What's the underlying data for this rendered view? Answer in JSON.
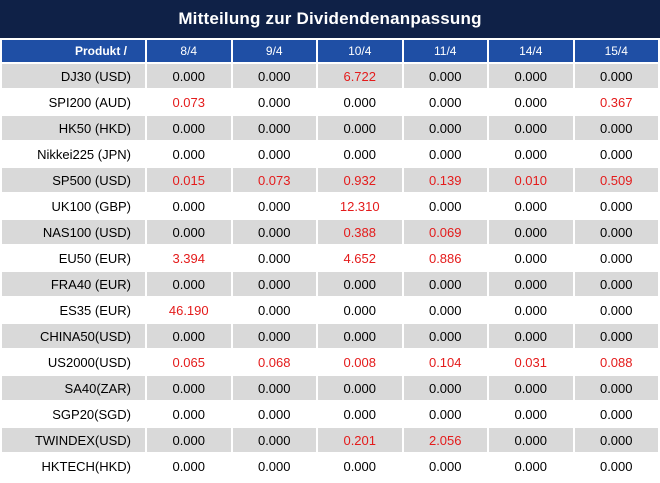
{
  "title": "Mitteilung zur Dividendenanpassung",
  "colors": {
    "title_bg": "#0f2147",
    "header_bg": "#1f4fa5",
    "row_alt_bg": "#d9d9d9",
    "positive_value": "#e41b1b"
  },
  "header": {
    "product_label": "Produkt /",
    "dates": [
      "8/4",
      "9/4",
      "10/4",
      "11/4",
      "14/4",
      "15/4"
    ]
  },
  "rows": [
    {
      "product": "DJ30 (USD)",
      "values": [
        "0.000",
        "0.000",
        "6.722",
        "0.000",
        "0.000",
        "0.000"
      ]
    },
    {
      "product": "SPI200 (AUD)",
      "values": [
        "0.073",
        "0.000",
        "0.000",
        "0.000",
        "0.000",
        "0.367"
      ]
    },
    {
      "product": "HK50 (HKD)",
      "values": [
        "0.000",
        "0.000",
        "0.000",
        "0.000",
        "0.000",
        "0.000"
      ]
    },
    {
      "product": "Nikkei225 (JPN)",
      "values": [
        "0.000",
        "0.000",
        "0.000",
        "0.000",
        "0.000",
        "0.000"
      ]
    },
    {
      "product": "SP500 (USD)",
      "values": [
        "0.015",
        "0.073",
        "0.932",
        "0.139",
        "0.010",
        "0.509"
      ]
    },
    {
      "product": "UK100 (GBP)",
      "values": [
        "0.000",
        "0.000",
        "12.310",
        "0.000",
        "0.000",
        "0.000"
      ]
    },
    {
      "product": "NAS100 (USD)",
      "values": [
        "0.000",
        "0.000",
        "0.388",
        "0.069",
        "0.000",
        "0.000"
      ]
    },
    {
      "product": "EU50 (EUR)",
      "values": [
        "3.394",
        "0.000",
        "4.652",
        "0.886",
        "0.000",
        "0.000"
      ]
    },
    {
      "product": "FRA40 (EUR)",
      "values": [
        "0.000",
        "0.000",
        "0.000",
        "0.000",
        "0.000",
        "0.000"
      ]
    },
    {
      "product": "ES35 (EUR)",
      "values": [
        "46.190",
        "0.000",
        "0.000",
        "0.000",
        "0.000",
        "0.000"
      ]
    },
    {
      "product": "CHINA50(USD)",
      "values": [
        "0.000",
        "0.000",
        "0.000",
        "0.000",
        "0.000",
        "0.000"
      ]
    },
    {
      "product": "US2000(USD)",
      "values": [
        "0.065",
        "0.068",
        "0.008",
        "0.104",
        "0.031",
        "0.088"
      ]
    },
    {
      "product": "SA40(ZAR)",
      "values": [
        "0.000",
        "0.000",
        "0.000",
        "0.000",
        "0.000",
        "0.000"
      ]
    },
    {
      "product": "SGP20(SGD)",
      "values": [
        "0.000",
        "0.000",
        "0.000",
        "0.000",
        "0.000",
        "0.000"
      ]
    },
    {
      "product": "TWINDEX(USD)",
      "values": [
        "0.000",
        "0.000",
        "0.201",
        "2.056",
        "0.000",
        "0.000"
      ]
    },
    {
      "product": "HKTECH(HKD)",
      "values": [
        "0.000",
        "0.000",
        "0.000",
        "0.000",
        "0.000",
        "0.000"
      ]
    }
  ]
}
